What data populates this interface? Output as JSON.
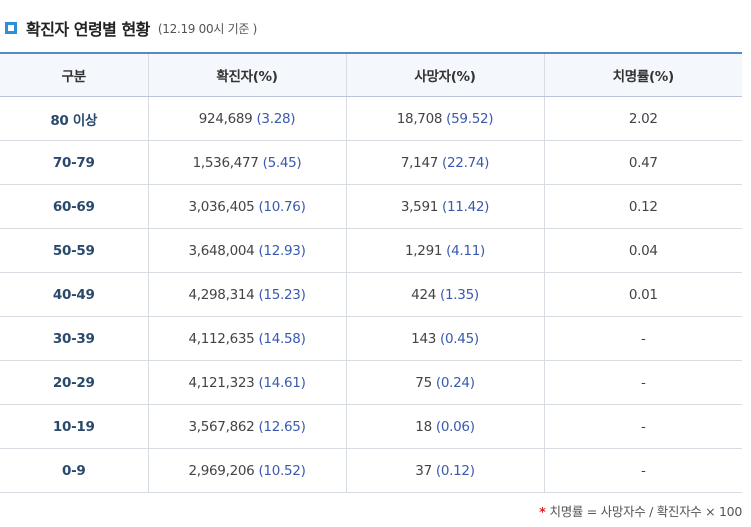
{
  "title": "확진자 연령별 현황",
  "subtitle": "(12.19 00시 기준 )",
  "columns": [
    "구분",
    "확진자(%)",
    "사망자(%)",
    "치명률(%)"
  ],
  "rows": [
    {
      "age": "80 이상",
      "cases": "924,689",
      "cases_pct": "(3.28)",
      "deaths": "18,708",
      "deaths_pct": "(59.52)",
      "fatality": "2.02"
    },
    {
      "age": "70-79",
      "cases": "1,536,477",
      "cases_pct": "(5.45)",
      "deaths": "7,147",
      "deaths_pct": "(22.74)",
      "fatality": "0.47"
    },
    {
      "age": "60-69",
      "cases": "3,036,405",
      "cases_pct": "(10.76)",
      "deaths": "3,591",
      "deaths_pct": "(11.42)",
      "fatality": "0.12"
    },
    {
      "age": "50-59",
      "cases": "3,648,004",
      "cases_pct": "(12.93)",
      "deaths": "1,291",
      "deaths_pct": "(4.11)",
      "fatality": "0.04"
    },
    {
      "age": "40-49",
      "cases": "4,298,314",
      "cases_pct": "(15.23)",
      "deaths": "424",
      "deaths_pct": "(1.35)",
      "fatality": "0.01"
    },
    {
      "age": "30-39",
      "cases": "4,112,635",
      "cases_pct": "(14.58)",
      "deaths": "143",
      "deaths_pct": "(0.45)",
      "fatality": "-"
    },
    {
      "age": "20-29",
      "cases": "4,121,323",
      "cases_pct": "(14.61)",
      "deaths": "75",
      "deaths_pct": "(0.24)",
      "fatality": "-"
    },
    {
      "age": "10-19",
      "cases": "3,567,862",
      "cases_pct": "(12.65)",
      "deaths": "18",
      "deaths_pct": "(0.06)",
      "fatality": "-"
    },
    {
      "age": "0-9",
      "cases": "2,969,206",
      "cases_pct": "(10.52)",
      "deaths": "37",
      "deaths_pct": "(0.12)",
      "fatality": "-"
    }
  ],
  "footnote": {
    "star": "*",
    "text": "치명률 = 사망자수 / 확진자수 × 100"
  },
  "colors": {
    "accent": "#2f8fd6",
    "header_border": "#5a87c9",
    "header_bg": "#f4f7fb",
    "percent_text": "#3a5ab0",
    "footnote_star": "#e02020"
  },
  "icons": {
    "title_icon": "square-bullet-icon"
  }
}
